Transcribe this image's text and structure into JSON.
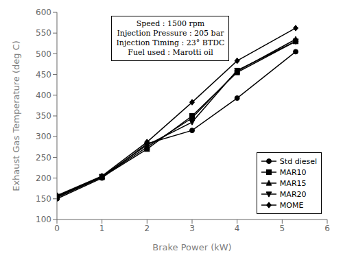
{
  "chart_data": {
    "type": "line",
    "annotations": [
      "Speed : 1500 rpm",
      "Injection Pressure : 205 bar",
      "Injection Timing : 23° BTDC",
      "Fuel used : Marotti oil"
    ],
    "x_label": "Brake Power (kW)",
    "y_label": "Exhaust Gas Temperature (deg C)",
    "x": [
      0,
      1,
      2,
      3,
      4,
      5.3
    ],
    "series": [
      {
        "name": "Std diesel",
        "marker": "circle",
        "color": "#000000",
        "values": [
          150,
          200,
          283,
          315,
          393,
          505
        ]
      },
      {
        "name": "MAR10",
        "marker": "square",
        "color": "#000000",
        "values": [
          153,
          202,
          270,
          350,
          455,
          530
        ]
      },
      {
        "name": "MAR15",
        "marker": "triangle",
        "color": "#000000",
        "values": [
          155,
          203,
          275,
          345,
          458,
          535
        ]
      },
      {
        "name": "MAR20",
        "marker": "triangle-down",
        "color": "#000000",
        "values": [
          156,
          204,
          280,
          335,
          460,
          530
        ]
      },
      {
        "name": "MOME",
        "marker": "diamond",
        "color": "#000000",
        "values": [
          158,
          205,
          287,
          383,
          483,
          562
        ]
      }
    ],
    "xlim": [
      0,
      6
    ],
    "ylim": [
      100,
      600
    ],
    "xticks": [
      0,
      1,
      2,
      3,
      4,
      5,
      6
    ],
    "yticks": [
      100,
      150,
      200,
      250,
      300,
      350,
      400,
      450,
      500,
      550,
      600
    ],
    "grid": false,
    "legend": "lower right"
  }
}
